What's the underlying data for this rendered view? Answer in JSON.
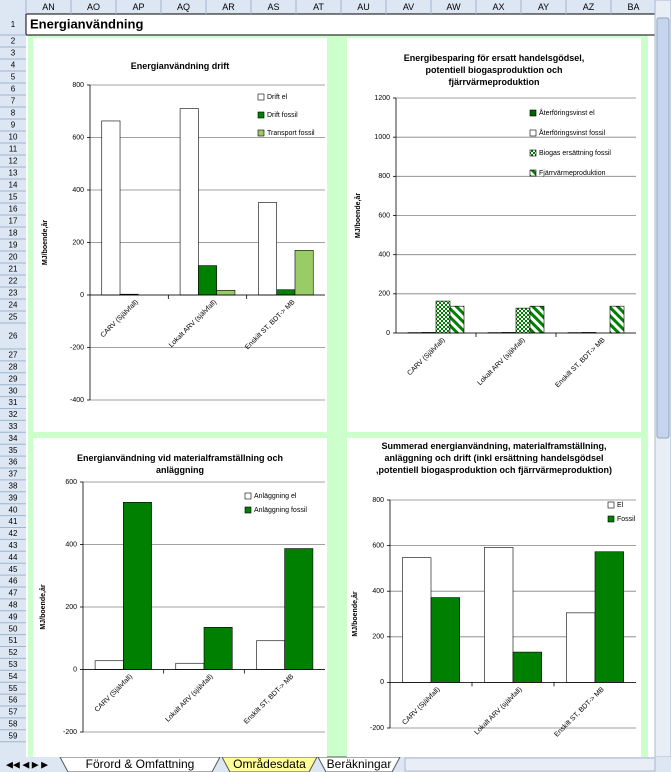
{
  "sheet": {
    "title": "Energianvändning",
    "columns": [
      "AN",
      "AO",
      "AP",
      "AQ",
      "AR",
      "AS",
      "AT",
      "AU",
      "AV",
      "AW",
      "AX",
      "AY",
      "AZ",
      "BA"
    ],
    "rows": [
      1,
      2,
      3,
      4,
      5,
      6,
      7,
      8,
      9,
      10,
      11,
      12,
      13,
      14,
      15,
      16,
      17,
      18,
      19,
      20,
      21,
      22,
      23,
      24,
      25,
      26,
      27,
      28,
      29,
      30,
      31,
      32,
      33,
      34,
      35,
      36,
      37,
      38,
      39,
      40,
      41,
      42,
      43,
      44,
      45,
      46,
      47,
      48,
      49,
      50,
      51,
      52,
      53,
      54,
      55,
      56,
      57,
      58,
      59
    ],
    "tabs": [
      "Förord & Omfattning",
      "Områdesdata",
      "Beräkningar"
    ]
  },
  "chart_data": [
    {
      "type": "bar",
      "title": "Energianvändning drift",
      "y_label": "MJ/boende,år",
      "categories": [
        "CARV (Självfall)",
        "Lokalt ARV (självfall)",
        "Enskilt ST, BDT-> MB"
      ],
      "series": [
        {
          "name": "Drift el",
          "color": "#ffffff",
          "values": [
            663,
            710,
            352
          ]
        },
        {
          "name": "Drift fossil",
          "color": "#008000",
          "values": [
            3,
            112,
            20
          ]
        },
        {
          "name": "Transport fossil",
          "color": "#99cc66",
          "values": [
            0,
            18,
            170
          ]
        }
      ],
      "ylim": [
        -400,
        800
      ],
      "yticks": [
        -400,
        -200,
        0,
        200,
        400,
        600,
        800
      ],
      "grid": true
    },
    {
      "type": "bar",
      "title": "Energibesparing för ersatt handelsgödsel, potentiell biogasproduktion och fjärrvärmeproduktion",
      "y_label": "MJ/boende,år",
      "categories": [
        "CARV (Självfall)",
        "Lokalt ARV (självfall)",
        "Enskilt ST, BDT-> MB"
      ],
      "series": [
        {
          "name": "Återföringsvinst el",
          "color": "#006400",
          "values": [
            2,
            2,
            2
          ]
        },
        {
          "name": "Återföringsvinst fossil",
          "color": "#ffffff",
          "values": [
            3,
            3,
            3
          ]
        },
        {
          "name": "Biogas ersättning fossil",
          "color": "#008000",
          "pattern": "checker",
          "values": [
            163,
            127,
            0
          ]
        },
        {
          "name": "Fjärrvärmeproduktion",
          "color": "#008000",
          "pattern": "diagonal",
          "values": [
            137,
            137,
            137
          ]
        }
      ],
      "ylim": [
        0,
        1200
      ],
      "yticks": [
        0,
        200,
        400,
        600,
        800,
        1000,
        1200
      ],
      "grid": true
    },
    {
      "type": "bar",
      "title": "Energianvändning vid materialframställning och anläggning",
      "y_label": "MJ/boende,år",
      "categories": [
        "CARV (Självfall)",
        "Lokalt ARV (självfall)",
        "Enskilt ST, BDT-> MB"
      ],
      "series": [
        {
          "name": "Anläggning el",
          "color": "#ffffff",
          "values": [
            28,
            20,
            92
          ]
        },
        {
          "name": "Anläggning fossil",
          "color": "#008000",
          "values": [
            535,
            135,
            387
          ]
        }
      ],
      "ylim": [
        -200,
        600
      ],
      "yticks": [
        -200,
        0,
        200,
        400,
        600
      ],
      "grid": true
    },
    {
      "type": "bar",
      "title": "Summerad energianvändning, materialframställning, anläggning och drift (inkl ersättning handelsgödsel ,potentiell biogasproduktion och fjärrvärmeproduktion)",
      "y_label": "MJ/boende,år",
      "categories": [
        "CARV (Självfall)",
        "Lokalt ARV (självfall)",
        "Enskilt ST, BDT-> MB"
      ],
      "series": [
        {
          "name": "El",
          "color": "#ffffff",
          "values": [
            547,
            592,
            305
          ]
        },
        {
          "name": "Fossil",
          "color": "#008000",
          "values": [
            372,
            133,
            573
          ]
        }
      ],
      "ylim": [
        -200,
        800
      ],
      "yticks": [
        -200,
        0,
        200,
        400,
        600,
        800
      ],
      "grid": true
    }
  ]
}
